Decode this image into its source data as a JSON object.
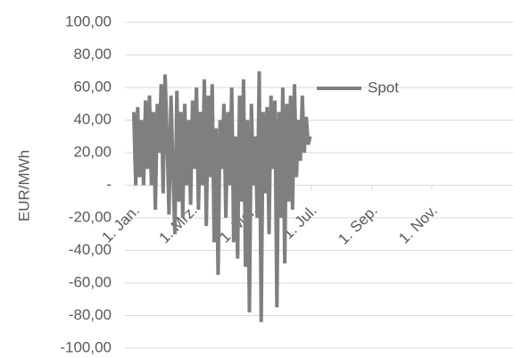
{
  "chart_data": {
    "type": "line",
    "y_label": "EUR/MWh",
    "series": [
      {
        "name": "Spot",
        "color": "#7f7f7f",
        "x": [
          0,
          2,
          4,
          6,
          8,
          10,
          12,
          14,
          16,
          18,
          20,
          22,
          24,
          26,
          28,
          30,
          32,
          34,
          36,
          38,
          40,
          42,
          44,
          46,
          48,
          50,
          52,
          54,
          56,
          58,
          60,
          62,
          64,
          66,
          68,
          70,
          72,
          74,
          76,
          78,
          80,
          82,
          84,
          86,
          88,
          90,
          92,
          94,
          96,
          98,
          100,
          102,
          104,
          106,
          108,
          110,
          112,
          114,
          116,
          118,
          120,
          122,
          124,
          126,
          128,
          130,
          132,
          134,
          136,
          138,
          140,
          142,
          144,
          146,
          148,
          150,
          152,
          154,
          156,
          158,
          160,
          162,
          164,
          166,
          168,
          170,
          172,
          174,
          176,
          178,
          180
        ],
        "values": [
          45,
          0,
          48,
          5,
          40,
          0,
          52,
          10,
          55,
          0,
          45,
          -15,
          50,
          20,
          62,
          -5,
          68,
          30,
          -18,
          55,
          10,
          -30,
          58,
          -10,
          45,
          -20,
          50,
          0,
          40,
          -12,
          52,
          10,
          60,
          -15,
          45,
          0,
          65,
          -25,
          55,
          5,
          62,
          -35,
          35,
          -55,
          40,
          10,
          50,
          -20,
          45,
          0,
          60,
          -35,
          30,
          -45,
          55,
          -10,
          65,
          -50,
          40,
          -78,
          50,
          0,
          30,
          -20,
          70,
          -84,
          45,
          -5,
          48,
          -30,
          55,
          10,
          52,
          -75,
          45,
          -20,
          60,
          -48,
          50,
          -10,
          55,
          -15,
          62,
          5,
          40,
          15,
          55,
          20,
          42,
          25,
          30
        ]
      }
    ],
    "xlim": [
      -9,
      387
    ],
    "xticks": [
      {
        "value": 0,
        "label": "1. Jan."
      },
      {
        "value": 59,
        "label": "1. Mrz."
      },
      {
        "value": 120,
        "label": "1. Mai."
      },
      {
        "value": 181,
        "label": "1. Jul."
      },
      {
        "value": 243,
        "label": "1. Sep."
      },
      {
        "value": 304,
        "label": "1. Nov."
      }
    ],
    "ylim": [
      -100,
      100
    ],
    "yticks": [
      {
        "value": -100,
        "label": "-100,00"
      },
      {
        "value": -80,
        "label": "-80,00"
      },
      {
        "value": -60,
        "label": "-60,00"
      },
      {
        "value": -40,
        "label": "-40,00"
      },
      {
        "value": -20,
        "label": "-20,00"
      },
      {
        "value": 0,
        "label": "-"
      },
      {
        "value": 20,
        "label": "20,00"
      },
      {
        "value": 40,
        "label": "40,00"
      },
      {
        "value": 60,
        "label": "60,00"
      },
      {
        "value": 80,
        "label": "80,00"
      },
      {
        "value": 100,
        "label": "100,00"
      }
    ],
    "grid": true
  }
}
